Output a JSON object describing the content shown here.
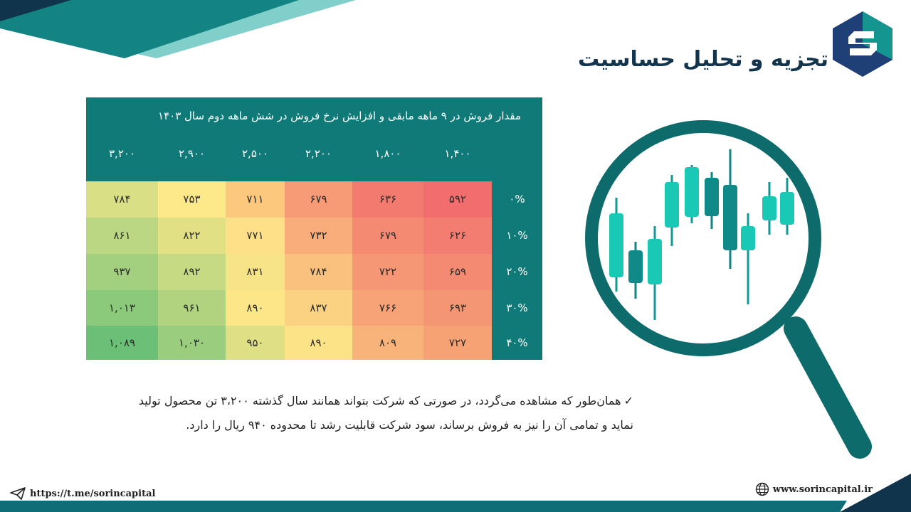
{
  "header": {
    "title": "تجزیه و تحلیل حساسیت"
  },
  "table": {
    "title": "مقدار فروش در ۹ ماهه مابقی و افزایش نرخ فروش در شش ماهه دوم سال ۱۴۰۳",
    "columns": [
      "۱,۴۰۰",
      "۱,۸۰۰",
      "۲,۲۰۰",
      "۲,۵۰۰",
      "۲,۹۰۰",
      "۳,۲۰۰"
    ],
    "rows": [
      {
        "label": "۰%",
        "values": [
          "۵۹۲",
          "۶۳۶",
          "۶۷۹",
          "۷۱۱",
          "۷۵۳",
          "۷۸۴"
        ]
      },
      {
        "label": "۱۰%",
        "values": [
          "۶۲۶",
          "۶۷۹",
          "۷۳۲",
          "۷۷۱",
          "۸۲۲",
          "۸۶۱"
        ]
      },
      {
        "label": "۲۰%",
        "values": [
          "۶۵۹",
          "۷۲۲",
          "۷۸۴",
          "۸۳۱",
          "۸۹۲",
          "۹۳۷"
        ]
      },
      {
        "label": "۳۰%",
        "values": [
          "۶۹۳",
          "۷۶۶",
          "۸۳۷",
          "۸۹۰",
          "۹۶۱",
          "۱,۰۱۳"
        ]
      },
      {
        "label": "۴۰%",
        "values": [
          "۷۲۷",
          "۸۰۹",
          "۸۹۰",
          "۹۵۰",
          "۱,۰۳۰",
          "۱,۰۸۹"
        ]
      }
    ],
    "colors": [
      [
        "#f26d6d",
        "#f27a6e",
        "#f79a76",
        "#fcc87d",
        "#fde98a",
        "#d8df84"
      ],
      [
        "#f27d70",
        "#f48a72",
        "#f9ad7a",
        "#fee088",
        "#e2e084",
        "#bcd783"
      ],
      [
        "#f38a71",
        "#f59775",
        "#f9c07e",
        "#f7e489",
        "#c6d983",
        "#a3d07e"
      ],
      [
        "#f49673",
        "#f7a277",
        "#fbd182",
        "#fde687",
        "#b1d380",
        "#8bc97b"
      ],
      [
        "#f6a275",
        "#f8b37a",
        "#fde387",
        "#dfdf86",
        "#9acd7d",
        "#6cbf76"
      ]
    ]
  },
  "bullets": {
    "line1": "همان‌طور که مشاهده می‌گردد، در صورتی که شرکت بتواند همانند سال گذشته ۳،۲۰۰ تن محصول تولید",
    "line2": "نماید و تمامی آن را نیز به فروش برساند، سود شرکت قابلیت رشد تا محدوده ۹۴۰ ریال را دارد."
  },
  "footer": {
    "telegram": "https://t.me/sorincapital",
    "website": "www.sorincapital.ir"
  },
  "colors": {
    "teal_dark": "#0f7a78",
    "teal_light": "#1fd0b8",
    "navy": "#12344d"
  }
}
